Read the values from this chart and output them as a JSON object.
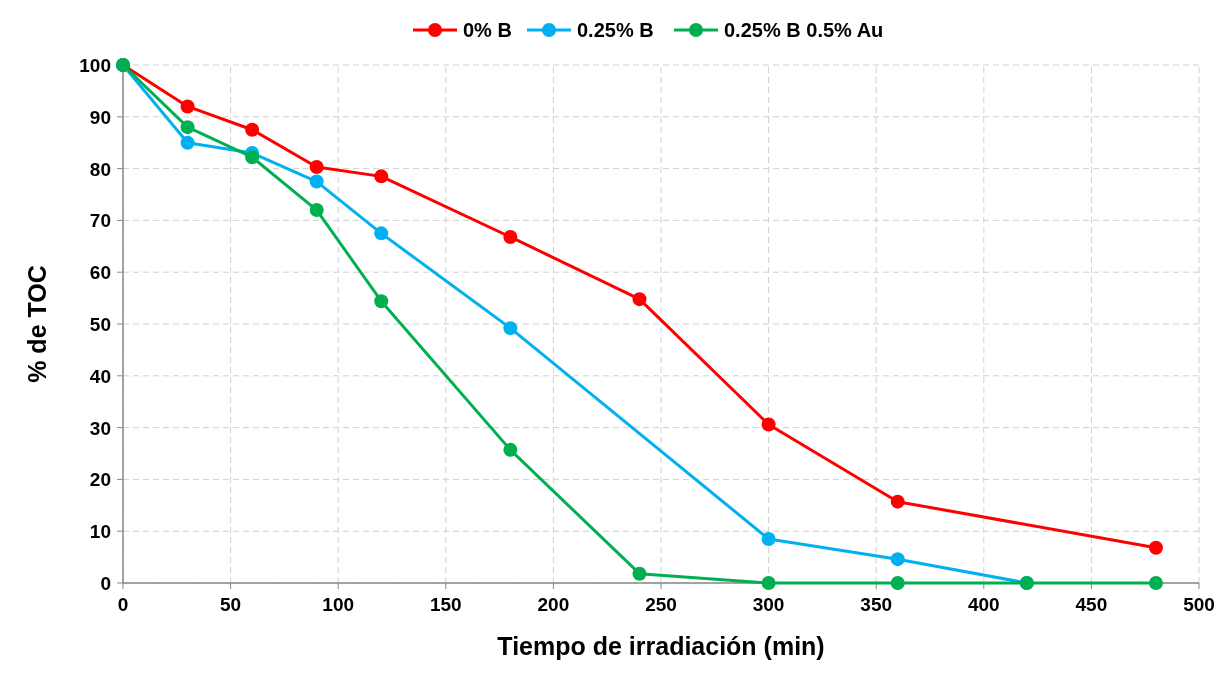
{
  "chart_data": {
    "type": "line",
    "xlabel": "Tiempo de irradiación (min)",
    "ylabel": "% de TOC",
    "xlim": [
      0,
      500
    ],
    "xticks": [
      0,
      50,
      100,
      150,
      200,
      250,
      300,
      350,
      400,
      450,
      500
    ],
    "ylim": [
      0,
      100
    ],
    "yticks": [
      0,
      10,
      20,
      30,
      40,
      50,
      60,
      70,
      80,
      90,
      100
    ],
    "grid": true,
    "legend": "top",
    "marker": "circle",
    "line_style": "solid",
    "series": [
      {
        "name": "0% B",
        "color": "#ff0000",
        "x": [
          0,
          30,
          60,
          90,
          120,
          180,
          240,
          300,
          360,
          480
        ],
        "values": [
          100,
          92,
          87.5,
          80.3,
          78.5,
          66.8,
          54.8,
          30.6,
          15.7,
          6.8
        ]
      },
      {
        "name": "0.25% B",
        "color": "#00b0f0",
        "x": [
          0,
          30,
          60,
          90,
          120,
          180,
          300,
          360,
          420
        ],
        "values": [
          100,
          85,
          83,
          77.5,
          67.5,
          49.2,
          8.5,
          4.6,
          0
        ]
      },
      {
        "name": "0.25% B 0.5% Au",
        "color": "#00b050",
        "x": [
          0,
          30,
          60,
          90,
          120,
          180,
          240,
          300,
          360,
          420,
          480
        ],
        "values": [
          100,
          88,
          82.2,
          72,
          54.4,
          25.7,
          1.8,
          0,
          0,
          0,
          0
        ]
      }
    ]
  }
}
